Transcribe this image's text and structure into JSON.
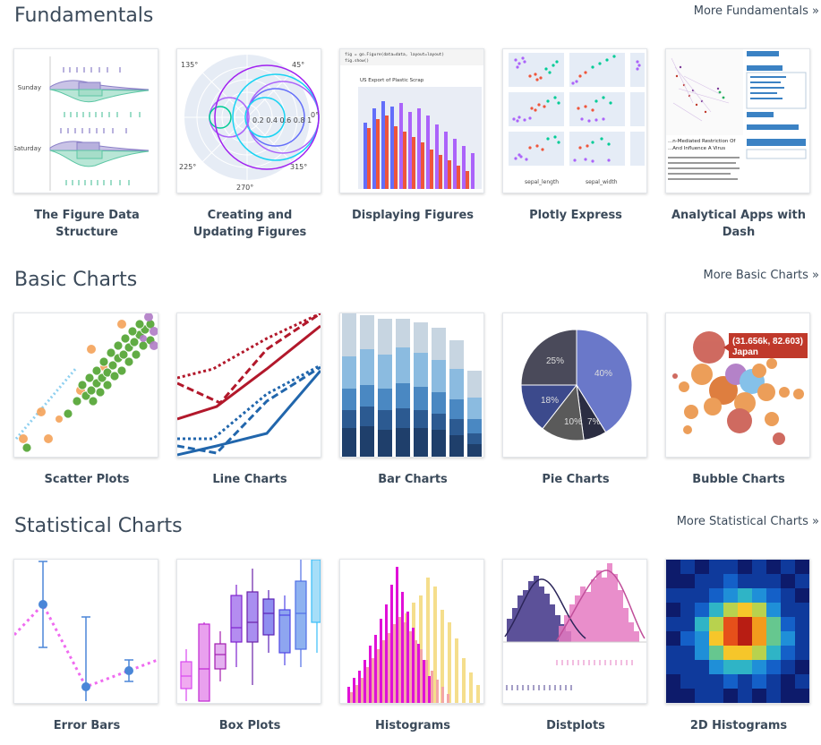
{
  "sections": [
    {
      "title": "Fundamentals",
      "more": "More Fundamentals »",
      "cards": [
        "The Figure Data Structure",
        "Creating and Updating Figures",
        "Displaying Figures",
        "Plotly Express",
        "Analytical Apps with Dash"
      ]
    },
    {
      "title": "Basic Charts",
      "more": "More Basic Charts »",
      "cards": [
        "Scatter Plots",
        "Line Charts",
        "Bar Charts",
        "Pie Charts",
        "Bubble Charts"
      ]
    },
    {
      "title": "Statistical Charts",
      "more": "More Statistical Charts »",
      "cards": [
        "Error Bars",
        "Box Plots",
        "Histograms",
        "Distplots",
        "2D Histograms"
      ]
    }
  ],
  "thumb_text": {
    "violin_sunday": "Sunday",
    "violin_saturday": "Saturday",
    "polar_135": "135°",
    "polar_45": "45°",
    "polar_0": "0°",
    "polar_225": "225°",
    "polar_315": "315°",
    "polar_270": "270°",
    "polar_radial": "0.2 0.4 0.6 0.8 1",
    "code_line1": "fig = go.Figure(data=data, layout=layout)",
    "code_line2": "fig.show()",
    "bar_title": "US Export of Plastic Scrap",
    "px_xlabel1": "sepal_length",
    "px_xlabel2": "sepal_width",
    "dash_text1": "...n-Mediated Restriction Of",
    "dash_text2": "...And Influence A Virus",
    "pie_25": "25%",
    "pie_40": "40%",
    "pie_18": "18%",
    "pie_10": "10%",
    "pie_7": "7%",
    "bubble_tip1": "(31.656k, 82.603)",
    "bubble_tip2": "Japan"
  },
  "colors": {
    "heading": "#3b4a5a",
    "card_border": "#e3e6ea"
  }
}
